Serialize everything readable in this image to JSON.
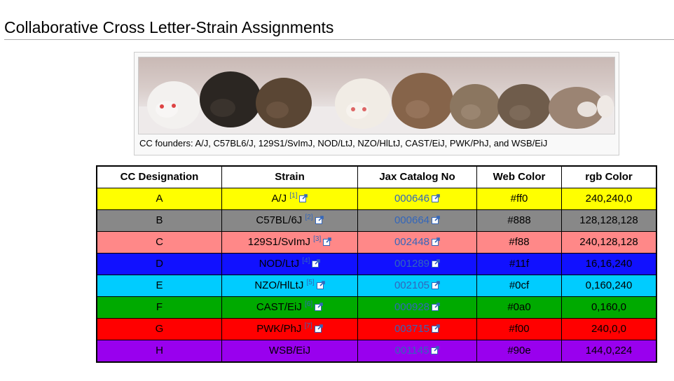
{
  "page": {
    "heading": "Collaborative Cross Letter-Strain Assignments"
  },
  "figure": {
    "caption": "CC founders: A/J, C57BL6/J, 129S1/SvImJ, NOD/LtJ, NZO/HlLtJ, CAST/EiJ, PWK/PhJ, and WSB/EiJ",
    "image_alt": "Photo of eight founder mice in a row"
  },
  "table": {
    "headers": [
      "CC Designation",
      "Strain",
      "Jax Catalog No",
      "Web Color",
      "rgb Color"
    ],
    "rows": [
      {
        "designation": "A",
        "strain": "A/J",
        "ref": "[1]",
        "catalog": "000646",
        "web_color": "#ff0",
        "rgb": "240,240,0",
        "bg": "#ffff00"
      },
      {
        "designation": "B",
        "strain": "C57BL/6J",
        "ref": "[2]",
        "catalog": "000664",
        "web_color": "#888",
        "rgb": "128,128,128",
        "bg": "#888888"
      },
      {
        "designation": "C",
        "strain": "129S1/SvImJ",
        "ref": "[3]",
        "catalog": "002448",
        "web_color": "#f88",
        "rgb": "240,128,128",
        "bg": "#ff8888"
      },
      {
        "designation": "D",
        "strain": "NOD/LtJ",
        "ref": "[4]",
        "catalog": "001289",
        "web_color": "#11f",
        "rgb": "16,16,240",
        "bg": "#1111ff"
      },
      {
        "designation": "E",
        "strain": "NZO/HlLtJ",
        "ref": "[5]",
        "catalog": "002105",
        "web_color": "#0cf",
        "rgb": "0,160,240",
        "bg": "#00ccff"
      },
      {
        "designation": "F",
        "strain": "CAST/EiJ",
        "ref": "[6]",
        "catalog": "000928",
        "web_color": "#0a0",
        "rgb": "0,160,0",
        "bg": "#00aa00"
      },
      {
        "designation": "G",
        "strain": "PWK/PhJ",
        "ref": "[7]",
        "catalog": "003715",
        "web_color": "#f00",
        "rgb": "240,0,0",
        "bg": "#ff0000"
      },
      {
        "designation": "H",
        "strain": "WSB/EiJ",
        "ref": "",
        "catalog": "001145",
        "web_color": "#90e",
        "rgb": "144,0,224",
        "bg": "#9900ee"
      }
    ]
  },
  "colors": {
    "link": "#3366bb",
    "heading_rule": "#aaaaaa"
  }
}
